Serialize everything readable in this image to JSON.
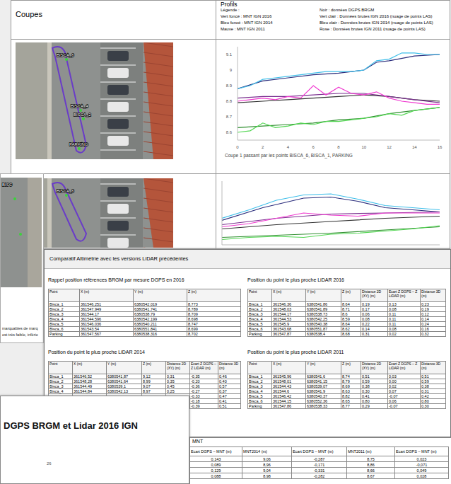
{
  "coupes": {
    "title": "Coupes",
    "maps": [
      {
        "labels": [
          "BISCA_6",
          "BISCA_4",
          "BISCA_2",
          "PARKING"
        ]
      },
      {
        "labels": [
          "BISCA_6"
        ]
      }
    ]
  },
  "profils": {
    "title": "Profils",
    "legend_title": "Légende :"
  },
  "chart_data": [
    {
      "type": "line",
      "caption": "Coupe 1 passant par les points BISCA_6, BISCA_1, PARKING",
      "xlim": [
        0,
        16
      ],
      "xticks": [
        0,
        2,
        4,
        6,
        8,
        10,
        12,
        14,
        16
      ],
      "ylim": [
        8.55,
        9.15
      ],
      "yticks": [
        8.6,
        8.7,
        8.8,
        8.9,
        9,
        9.1
      ],
      "grid": false,
      "series": [
        {
          "name": "Noir : données DGPS BRGM",
          "color": "#333333",
          "x": [
            0,
            2,
            4,
            6,
            8,
            10,
            12,
            14,
            16
          ],
          "values": [
            8.79,
            8.8,
            8.81,
            8.82,
            8.83,
            8.84,
            8.83,
            8.81,
            8.8
          ]
        },
        {
          "name": "Vert foncé : MNT IGN 2016",
          "color": "#2f8f2f",
          "x": [
            0,
            2,
            4,
            6,
            8,
            10,
            12,
            14,
            16
          ],
          "values": [
            8.63,
            8.64,
            8.65,
            8.66,
            8.68,
            8.69,
            8.72,
            8.74,
            8.76
          ]
        },
        {
          "name": "Vert clair : Données brutes IGN 2016 (nuage de points LAS)",
          "color": "#52d652",
          "x": [
            0,
            1,
            2,
            3,
            4,
            5,
            6,
            7,
            8,
            9,
            10,
            11,
            12,
            13,
            14,
            15,
            16
          ],
          "values": [
            8.6,
            8.61,
            8.66,
            8.63,
            8.64,
            8.66,
            8.65,
            8.67,
            8.67,
            8.68,
            8.69,
            8.7,
            8.72,
            8.71,
            8.74,
            8.75,
            8.76
          ]
        },
        {
          "name": "Bleu foncé : MNT IGN 2014",
          "color": "#2b2d7c",
          "x": [
            0,
            2,
            4,
            6,
            8,
            10,
            11,
            12,
            14,
            16
          ],
          "values": [
            8.88,
            8.93,
            8.95,
            8.97,
            8.98,
            9,
            9.05,
            9.06,
            9.09,
            9.1
          ]
        },
        {
          "name": "Bleu clair : Données brutes IGN 2014 (nuage de points LAS)",
          "color": "#3fbfea",
          "x": [
            0,
            1,
            2,
            3,
            4,
            5,
            6,
            7,
            8,
            9,
            10,
            11,
            12,
            13,
            14,
            15,
            16
          ],
          "values": [
            8.88,
            8.9,
            8.94,
            8.95,
            8.96,
            8.97,
            8.98,
            8.99,
            8.99,
            8.99,
            9,
            9.06,
            9.07,
            9.11,
            9.11,
            9.1,
            9.1
          ]
        },
        {
          "name": "Mauve : MNT IGN 2011",
          "color": "#7a2f8f",
          "x": [
            0,
            2,
            4,
            6,
            8,
            10,
            12,
            14,
            16
          ],
          "values": [
            8.82,
            8.83,
            8.83,
            8.84,
            8.85,
            8.85,
            8.83,
            8.81,
            8.79
          ]
        },
        {
          "name": "Rose : Données brutes IGN 2011 (nuage de points LAS)",
          "color": "#f03ad0",
          "x": [
            0,
            1,
            2,
            3,
            4,
            5,
            6,
            7,
            8,
            9,
            10,
            11,
            12,
            13,
            14,
            15,
            16
          ],
          "values": [
            8.8,
            8.81,
            8.82,
            8.81,
            8.83,
            8.82,
            8.9,
            8.84,
            8.89,
            8.85,
            8.84,
            8.86,
            8.82,
            8.8,
            8.79,
            8.78,
            8.78
          ]
        }
      ]
    },
    {
      "type": "line",
      "xlim": [
        0,
        16
      ],
      "ylim": [
        8.55,
        9.15
      ],
      "tick_labels": false,
      "grid": false,
      "series": [
        {
          "name": "Noir : données DGPS BRGM",
          "color": "#333333",
          "x": [
            0,
            4,
            8,
            12,
            16
          ],
          "values": [
            8.7,
            8.74,
            8.77,
            8.8,
            8.82
          ]
        },
        {
          "name": "Vert foncé : MNT IGN 2016",
          "color": "#2f8f2f",
          "x": [
            0,
            4,
            8,
            12,
            16
          ],
          "values": [
            8.62,
            8.64,
            8.66,
            8.69,
            8.72
          ]
        },
        {
          "name": "Vert clair : Données brutes IGN 2016 (nuage de points LAS)",
          "color": "#52d652",
          "x": [
            0,
            2,
            4,
            6,
            8,
            10,
            12,
            14,
            16
          ],
          "values": [
            8.6,
            8.62,
            8.63,
            8.62,
            8.65,
            8.66,
            8.68,
            8.7,
            8.73
          ]
        },
        {
          "name": "Bleu foncé : MNT IGN 2014",
          "color": "#2b2d7c",
          "x": [
            0,
            3,
            6,
            8,
            10,
            12,
            16
          ],
          "values": [
            8.78,
            8.9,
            8.99,
            9,
            8.96,
            8.9,
            8.86
          ]
        },
        {
          "name": "Bleu clair : Données brutes IGN 2014 (nuage de points LAS)",
          "color": "#3fbfea",
          "x": [
            0,
            2,
            4,
            6,
            8,
            10,
            12,
            14,
            16
          ],
          "values": [
            8.8,
            8.88,
            8.97,
            9.02,
            9.03,
            8.98,
            8.92,
            8.9,
            8.88
          ]
        },
        {
          "name": "Mauve : MNT IGN 2011",
          "color": "#7a2f8f",
          "x": [
            0,
            4,
            8,
            12,
            16
          ],
          "values": [
            8.74,
            8.8,
            8.84,
            8.85,
            8.86
          ]
        },
        {
          "name": "Rose : Données brutes IGN 2011 (nuage de points LAS)",
          "color": "#f03ad0",
          "x": [
            0,
            2,
            4,
            6,
            8,
            10,
            12,
            16
          ],
          "values": [
            8.72,
            8.75,
            8.8,
            8.85,
            8.83,
            8.82,
            8.85,
            8.85
          ]
        }
      ]
    }
  ],
  "comparatif": {
    "title": "Comparatif Altimétrie avec les versions LiDAR précédentes",
    "tables": [
      {
        "title": "Rappel position références BRGM par mesure DGPS en 2016",
        "columns": [
          "Point",
          "X (m)",
          "Y (m)",
          "Z (m)"
        ],
        "rows": [
          [
            "Bisca_1",
            "361546,251",
            "6380542,019",
            "8,773"
          ],
          [
            "Bisca_2",
            "361547,949",
            "6380541,741",
            "8,789"
          ],
          [
            "Bisca_3",
            "361544,17",
            "6380538,79",
            "8,709"
          ],
          [
            "Bisca_4",
            "361544,596",
            "6380542,199",
            "8,698"
          ],
          [
            "Bisca_5",
            "361546,036",
            "6380540,211",
            "8,747"
          ],
          [
            "Bisca_6",
            "361543,54",
            "6380551,841",
            "8,699"
          ],
          [
            "Parking",
            "361547,567",
            "6380538,316",
            "8,702"
          ]
        ]
      },
      {
        "title": "Position du point le plus proche LiDAR 2016",
        "columns": [
          "Point",
          "X (m)",
          "Y (m)",
          "Z (m)",
          "Distance 2D (XY) (m)",
          "Ecart Z DGPS – Z LiDAR (m)",
          "Distance 3D (m)"
        ],
        "rows": [
          [
            "Bisca_1",
            "361546,36",
            "6380541,86",
            "8,64",
            "0,19",
            "0,13",
            "0,23"
          ],
          [
            "Bisca_2",
            "361548,03",
            "6380541,89",
            "8,71",
            "0,17",
            "0,08",
            "0,19"
          ],
          [
            "Bisca_3",
            "361544,17",
            "6380538,73",
            "8,6",
            "0,06",
            "0,11",
            "0,12"
          ],
          [
            "Bisca_4",
            "361544,53",
            "6380542,25",
            "8,59",
            "0,08",
            "0,11",
            "0,14"
          ],
          [
            "Bisca_5",
            "361545,9",
            "6380540,38",
            "8,64",
            "0,22",
            "0,11",
            "0,24"
          ],
          [
            "Bisca_6",
            "361543,68",
            "6380551,87",
            "8,62",
            "0,14",
            "0,08",
            "0,16"
          ],
          [
            "Parking",
            "361547,87",
            "6380538,4",
            "8,68",
            "0,31",
            "0,02",
            "0,32"
          ]
        ]
      },
      {
        "title": "Position du point le plus proche LiDAR 2014",
        "columns": [
          "Point",
          "X (m)",
          "Y (m)",
          "Z (m)",
          "Distance 2D (XY) (m)",
          "Ecart Z DGPS – Z LiDAR (m)",
          "Distance 3D (m)"
        ],
        "rows": [
          [
            "Bisca_1",
            "361546,52",
            "6380541,87",
            "9,12",
            "0,31",
            "-0,35",
            "0,46"
          ],
          [
            "Bisca_2",
            "361548,28",
            "6380541,64",
            "8,99",
            "0,35",
            "-0,20",
            "0,40"
          ],
          [
            "Bisca_3",
            "361544,49",
            "6380539,1",
            "9,07",
            "0,45",
            "-0,36",
            "0,57"
          ],
          [
            "Bisca_4",
            "361544,84",
            "6380542,13",
            "8,97",
            "0,25",
            "-0,27",
            "0,37"
          ],
          [
            null,
            null,
            null,
            null,
            null,
            "-0,33",
            "0,47"
          ],
          [
            null,
            null,
            null,
            null,
            null,
            "-0,18",
            "0,41"
          ],
          [
            null,
            null,
            null,
            null,
            null,
            "-0,39",
            "0,51"
          ]
        ]
      },
      {
        "title": "Position du point le plus proche LiDAR 2011",
        "columns": [
          "Point",
          "X (m)",
          "Y (m)",
          "Z (m)",
          "Distance 2D (XY) (m)",
          "Ecart Z DGPS – Z LiDAR (m)",
          "Distance 3D (m)"
        ],
        "rows": [
          [
            "Bisca_1",
            "361545,96",
            "6380541,6",
            "8,74",
            "0,51",
            "0,03",
            "0,51"
          ],
          [
            "Bisca_2",
            "361548,01",
            "6380541,15",
            "8,79",
            "0,59",
            "0,00",
            "0,59"
          ],
          [
            "Bisca_3",
            "361544,43",
            "6380539,07",
            "8,69",
            "0,38",
            "0,02",
            "0,38"
          ],
          [
            "Bisca_4",
            "361544,6",
            "6380541,9",
            "8,63",
            "0,30",
            "0,07",
            "0,31"
          ],
          [
            "Bisca_5",
            "361546,42",
            "6380540,37",
            "8,82",
            "0,41",
            "-0,07",
            "0,42"
          ],
          [
            "Bisca_6",
            "361544,15",
            "6380552,36",
            "8,65",
            "0,80",
            "0,06",
            "0,80"
          ],
          [
            "Parking",
            "361547,86",
            "6380538,33",
            "8,77",
            "0,29",
            "-0,07",
            "0,30"
          ]
        ]
      }
    ]
  },
  "left_slide": {
    "map_label": "BISC",
    "lines": [
      "marquables de marq",
      "est très faible, inférie"
    ]
  },
  "bottom_slide": {
    "title": "DGPS BRGM et Lidar 2016 IGN",
    "page": "26"
  },
  "mnt_fragment": {
    "title": "MNT",
    "columns": [
      "Ecart DGPS – MNT (m)",
      "MNT2014 (m)",
      "Ecart DGPS – MNT (m)",
      "MNT2011 (m)",
      "Ecart DGPS – MNT (m)"
    ],
    "rows": [
      [
        "0,143",
        "9,06",
        "-0,287",
        "8,75",
        "0,023"
      ],
      [
        "0,089",
        "8,96",
        "-0,171",
        "8,86",
        "-0,071"
      ],
      [
        "0,129",
        "9,04",
        "-0,331",
        "8,66",
        "0,049"
      ],
      [
        "0,088",
        "8,98",
        "-0,282",
        "8,67",
        "0,028"
      ]
    ]
  }
}
